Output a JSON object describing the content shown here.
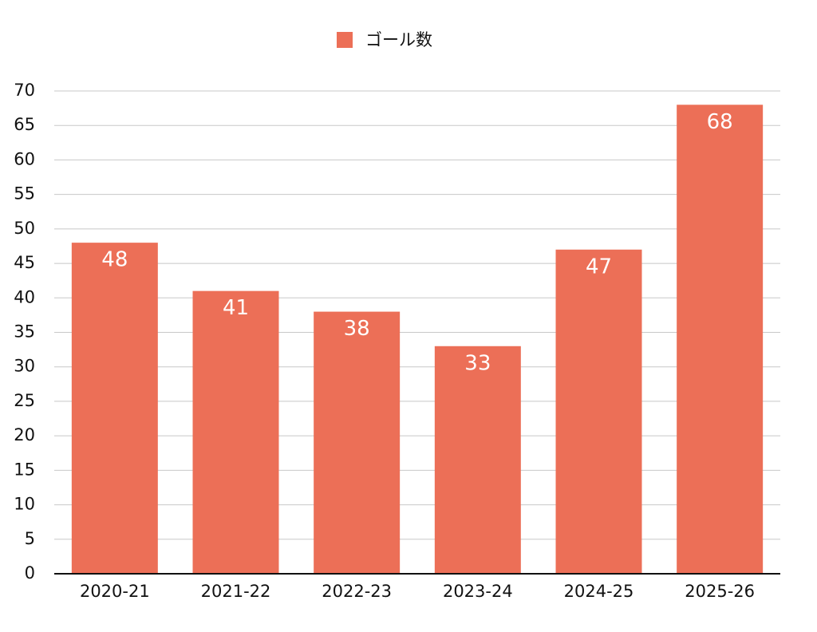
{
  "chart_data": {
    "type": "bar",
    "categories": [
      "2020-21",
      "2021-22",
      "2022-23",
      "2023-24",
      "2024-25",
      "2025-26"
    ],
    "series": [
      {
        "name": "ゴール数",
        "color": "#ec6f57",
        "values": [
          48,
          41,
          38,
          33,
          47,
          68
        ]
      }
    ],
    "ylim": [
      0,
      70
    ],
    "yticks": [
      0,
      5,
      10,
      15,
      20,
      25,
      30,
      35,
      40,
      45,
      50,
      55,
      60,
      65,
      70
    ],
    "grid": true,
    "legend": "top"
  }
}
